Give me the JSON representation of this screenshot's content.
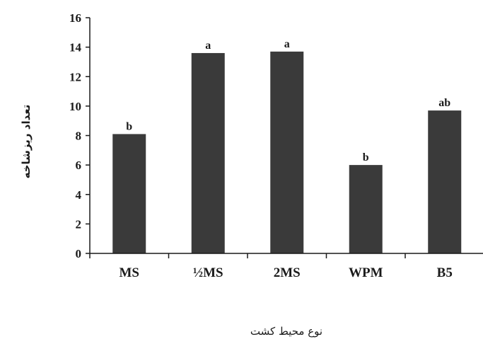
{
  "chart_data": {
    "type": "bar",
    "categories": [
      "MS",
      "½MS",
      "2MS",
      "WPM",
      "B5"
    ],
    "values": [
      8.1,
      13.6,
      13.7,
      6.0,
      9.7
    ],
    "significance_labels": [
      "b",
      "a",
      "a",
      "b",
      "ab"
    ],
    "xlabel": "نوع محیط کشت",
    "ylabel": "تعداد ریزشاخه",
    "ylim": [
      0,
      16
    ],
    "yticks": [
      0,
      2,
      4,
      6,
      8,
      10,
      12,
      14,
      16
    ],
    "grid": false,
    "bar_color": "#3a3a3a"
  }
}
